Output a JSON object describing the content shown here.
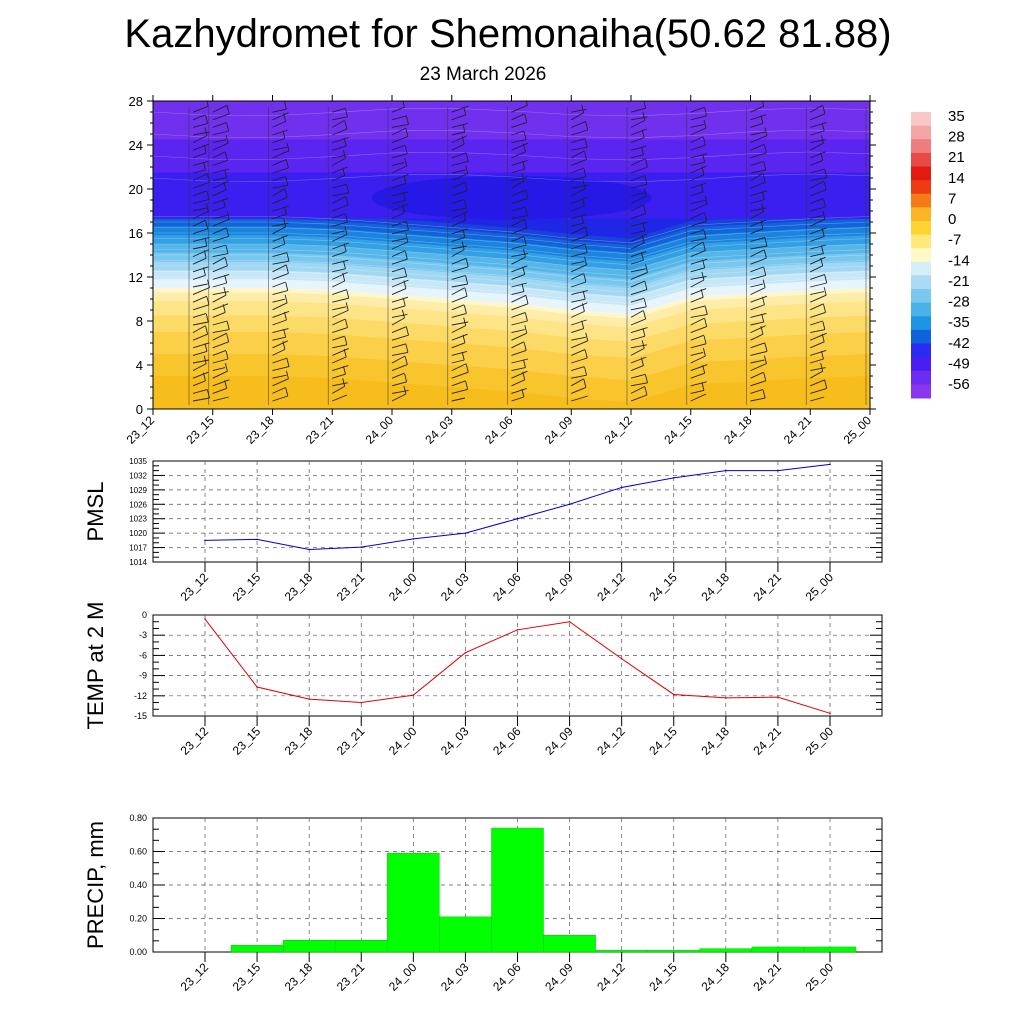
{
  "page": {
    "title": "Kazhydromet for Shemonaiha(50.62 81.88)",
    "subtitle": "23 March 2026"
  },
  "colors": {
    "pmsl_line": "#0000cc",
    "temp_line": "#e00000",
    "precip_bar": "#00ff00",
    "grid": "#555555"
  },
  "chart_data": [
    {
      "id": "cross_section",
      "type": "heatmap",
      "description_label": "temperature contours with wind barbs",
      "categories": [
        "23_12",
        "23_15",
        "23_18",
        "23_21",
        "24_00",
        "24_03",
        "24_06",
        "24_09",
        "24_12",
        "24_15",
        "24_18",
        "24_21",
        "25_00"
      ],
      "y_ticks": [
        0,
        4,
        8,
        12,
        16,
        20,
        24,
        28
      ],
      "ylim": [
        0,
        28
      ],
      "freezing_level": [
        11,
        11,
        11,
        10.8,
        10.4,
        10,
        9.6,
        9.0,
        8.6,
        10.2,
        10.5,
        10.8,
        11
      ],
      "tropopause_level": [
        18,
        18,
        18,
        18,
        18,
        18,
        18,
        18,
        18,
        18,
        18,
        18,
        18
      ],
      "colorbar_labels": [
        "35",
        "28",
        "21",
        "14",
        "7",
        "0",
        "-7",
        "-14",
        "-21",
        "-28",
        "-35",
        "-42",
        "-49",
        "-56"
      ],
      "colorbar_colors": [
        "#f8c8c8",
        "#f4a6a6",
        "#ee7d7d",
        "#e84b45",
        "#e21a10",
        "#ef3b12",
        "#f57a18",
        "#fbb526",
        "#fdd231",
        "#fee97a",
        "#fff9c8",
        "#d6eef9",
        "#a9dcf4",
        "#7ac8ef",
        "#48b2e9",
        "#1c95e2",
        "#0e63dc",
        "#2b2af0",
        "#4a1ef2",
        "#6c2bf0",
        "#8a35ee"
      ]
    },
    {
      "id": "pmsl",
      "type": "line",
      "ylabel": "PMSL",
      "categories": [
        "23_12",
        "23_15",
        "23_18",
        "23_21",
        "24_00",
        "24_03",
        "24_06",
        "24_09",
        "24_12",
        "24_15",
        "24_18",
        "24_21",
        "25_00"
      ],
      "values": [
        1018.5,
        1018.7,
        1016.6,
        1017.1,
        1018.8,
        1020.0,
        1023.0,
        1026.0,
        1029.5,
        1031.5,
        1033.0,
        1033.0,
        1034.3
      ],
      "ylim": [
        1014,
        1035
      ],
      "y_ticks": [
        "1014",
        "1017",
        "1020",
        "1023",
        "1026",
        "1029",
        "1032",
        "1035"
      ]
    },
    {
      "id": "temp2m",
      "type": "line",
      "ylabel": "TEMP at 2 M",
      "categories": [
        "23_12",
        "23_15",
        "23_18",
        "23_21",
        "24_00",
        "24_03",
        "24_06",
        "24_09",
        "24_12",
        "24_15",
        "24_18",
        "24_21",
        "25_00"
      ],
      "values": [
        -0.6,
        -10.7,
        -12.5,
        -13.0,
        -11.9,
        -5.6,
        -2.2,
        -1.0,
        -6.5,
        -11.8,
        -12.3,
        -12.2,
        -14.6
      ],
      "ylim": [
        -15,
        0
      ],
      "y_ticks": [
        "-15",
        "-12",
        "-9",
        "-6",
        "-3",
        "0"
      ]
    },
    {
      "id": "precip",
      "type": "bar",
      "ylabel": "PRECIP, mm",
      "categories": [
        "23_12",
        "23_15",
        "23_18",
        "23_21",
        "24_00",
        "24_03",
        "24_06",
        "24_09",
        "24_12",
        "24_15",
        "24_18",
        "24_21",
        "25_00"
      ],
      "values": [
        0.0,
        0.04,
        0.07,
        0.07,
        0.59,
        0.21,
        0.74,
        0.1,
        0.01,
        0.01,
        0.02,
        0.03,
        0.03
      ],
      "ylim": [
        0,
        0.8
      ],
      "y_ticks": [
        "0.00",
        "0.20",
        "0.40",
        "0.60",
        "0.80"
      ]
    }
  ]
}
